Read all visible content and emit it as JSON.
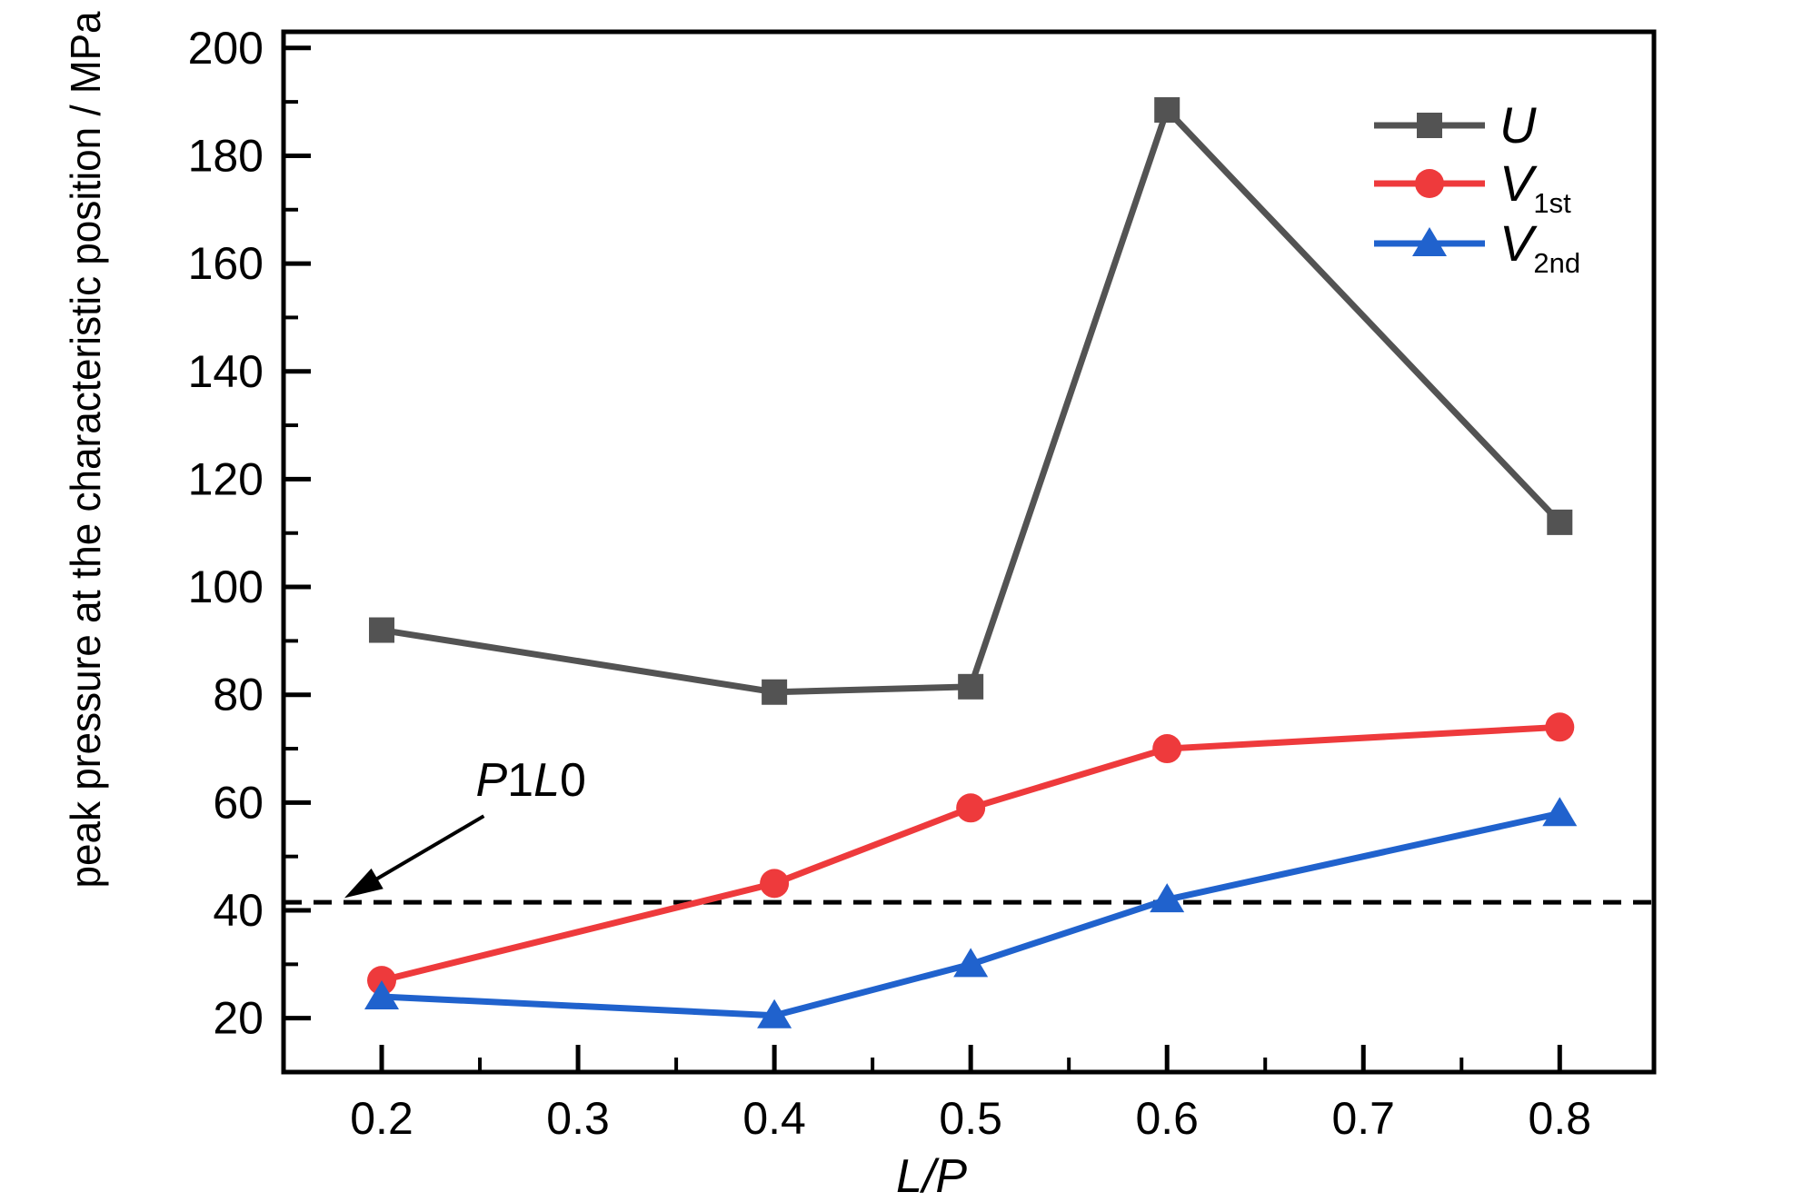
{
  "figure": {
    "background": "#ffffff"
  },
  "chart_data": {
    "type": "line",
    "title": "",
    "xlabel": "L/P",
    "ylabel": "peak pressure at the characteristic position / MPa",
    "xlim": [
      0.15,
      0.848
    ],
    "ylim": [
      10,
      203
    ],
    "grid": false,
    "axis_color": "#000000",
    "x": [
      0.2,
      0.4,
      0.5,
      0.6,
      0.8
    ],
    "series": [
      {
        "name": "U",
        "sub": "",
        "marker": "square",
        "color": "#535353",
        "values": [
          92,
          80.5,
          81.5,
          188.5,
          112
        ]
      },
      {
        "name": "V",
        "sub": "1st",
        "marker": "circle",
        "color": "#ee3a3c",
        "values": [
          27,
          45,
          59,
          70,
          74
        ]
      },
      {
        "name": "V",
        "sub": "2nd",
        "marker": "triangle",
        "color": "#2062cd",
        "values": [
          24,
          20.5,
          30,
          42,
          58
        ]
      }
    ],
    "x_major_ticks": [
      0.2,
      0.3,
      0.4,
      0.5,
      0.6,
      0.7,
      0.8
    ],
    "x_minor_ticks": [
      0.25,
      0.35,
      0.45,
      0.55,
      0.65,
      0.75
    ],
    "y_major_ticks": [
      20,
      40,
      60,
      80,
      100,
      120,
      140,
      160,
      180,
      200
    ],
    "y_minor_ticks": [
      30,
      50,
      70,
      90,
      110,
      130,
      150,
      170,
      190
    ],
    "threshold_line": {
      "value": 41.5,
      "label": "P1L0",
      "color": "#000000",
      "style": "dashed"
    },
    "annotation": {
      "text": "P1L0",
      "text_x": 0.276,
      "text_y": 66,
      "arrow_from_x": 0.252,
      "arrow_from_y": 57.5,
      "arrow_to_x": 0.181,
      "arrow_to_y": 42.3
    },
    "legend": {
      "position": "upper-right"
    }
  }
}
